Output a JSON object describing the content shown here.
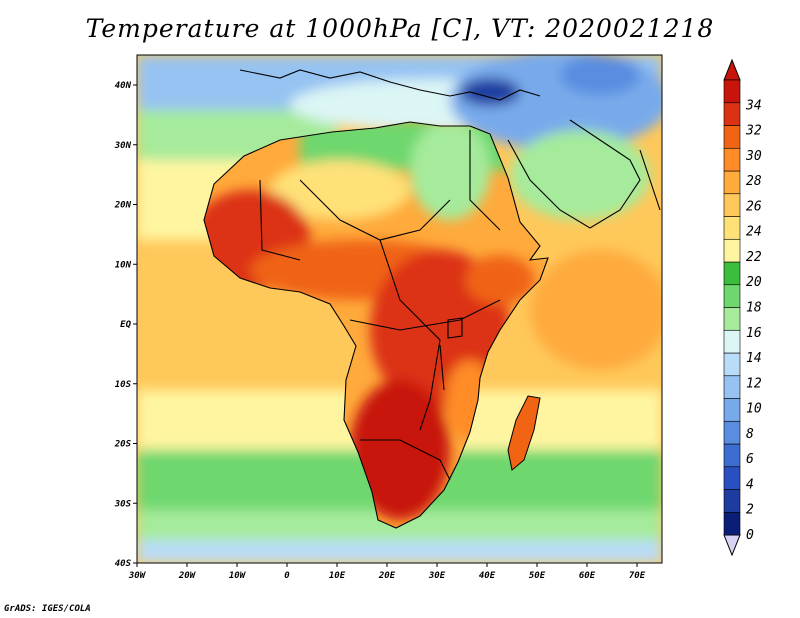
{
  "title": "Temperature at 1000hPa [C], VT: 2020021218",
  "credit": "GrADS: IGES/COLA",
  "lon_labels": [
    "30W",
    "20W",
    "10W",
    "0",
    "10E",
    "20E",
    "30E",
    "40E",
    "50E",
    "60E",
    "70E"
  ],
  "lat_labels": [
    "40N",
    "30N",
    "20N",
    "10N",
    "EQ",
    "10S",
    "20S",
    "30S",
    "40S"
  ],
  "colorbar": {
    "labels": [
      "0",
      "2",
      "4",
      "6",
      "8",
      "10",
      "12",
      "14",
      "16",
      "18",
      "20",
      "22",
      "24",
      "26",
      "28",
      "30",
      "32",
      "34"
    ],
    "colors": [
      "#0a1e78",
      "#1e3ca0",
      "#2850c0",
      "#3c6ed2",
      "#5a8ce0",
      "#78aaeb",
      "#96c3f2",
      "#b9dcf8",
      "#dcf5f5",
      "#a5eb9b",
      "#6ed76e",
      "#3cbe3c",
      "#fff5a0",
      "#ffe178",
      "#ffc85a",
      "#ffaa3c",
      "#ff8c28",
      "#f06414",
      "#dc3214",
      "#c8140a"
    ],
    "under_color": "#d9d2f5",
    "over_color": "#c8140a"
  },
  "map": {
    "lon_range": [
      -30,
      75
    ],
    "lat_range": [
      -40,
      45
    ],
    "field": "Temperature at 1000hPa",
    "units": "C"
  }
}
